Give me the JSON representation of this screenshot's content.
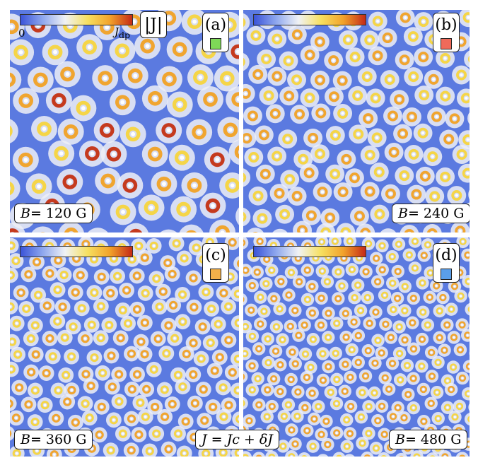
{
  "colorbar": {
    "min_label": "0",
    "max_label_main": "J",
    "max_label_sub": "dp",
    "quantity": "|J|",
    "gradient": [
      "#3a53d8",
      "#8fa8ee",
      "#f0f2f5",
      "#f7e060",
      "#f2a22b",
      "#c42a17"
    ]
  },
  "colors": {
    "background": "#5b7ae0",
    "halo": "#eef0f6",
    "ring_yellow": "#f5d548",
    "ring_orange": "#f0a530",
    "core_red": "#c53a1e"
  },
  "panels": [
    {
      "tag": "(a)",
      "swatch_color": "#7ed957",
      "field_var": "B",
      "field_text": " = 120 G"
    },
    {
      "tag": "(b)",
      "swatch_color": "#ef6a5a",
      "field_var": "B",
      "field_text": " = 240 G"
    },
    {
      "tag": "(c)",
      "swatch_color": "#f2b04a",
      "field_var": "B",
      "field_text": " = 360 G"
    },
    {
      "tag": "(d)",
      "swatch_color": "#5a9ee8",
      "field_var": "B",
      "field_text": " = 480 G"
    }
  ],
  "center_label": "J = Jc + δJ"
}
